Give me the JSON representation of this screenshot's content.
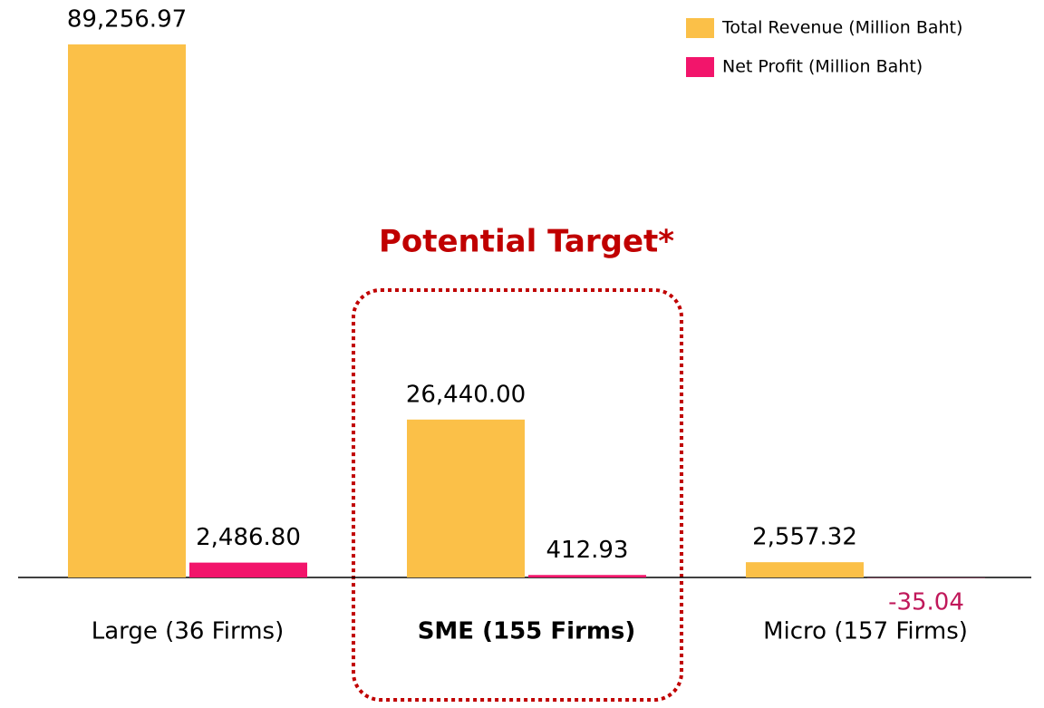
{
  "chart_data": {
    "type": "bar",
    "annotation": "Potential Target*",
    "categories": [
      "Large (36 Firms)",
      "SME (155 Firms)",
      "Micro (157 Firms)"
    ],
    "highlight_category": 1,
    "series": [
      {
        "name": "Total Revenue (Million Baht)",
        "color": "#fbc048",
        "values": [
          89256.97,
          26440.0,
          2557.32
        ],
        "value_labels": [
          "89,256.97",
          "26,440.00",
          "2,557.32"
        ]
      },
      {
        "name": "Net Profit (Million Baht)",
        "color": "#f2156b",
        "values": [
          2486.8,
          412.93,
          -35.04
        ],
        "value_labels": [
          "2,486.80",
          "412.93",
          "-35.04"
        ]
      }
    ],
    "legend": "top-right"
  }
}
